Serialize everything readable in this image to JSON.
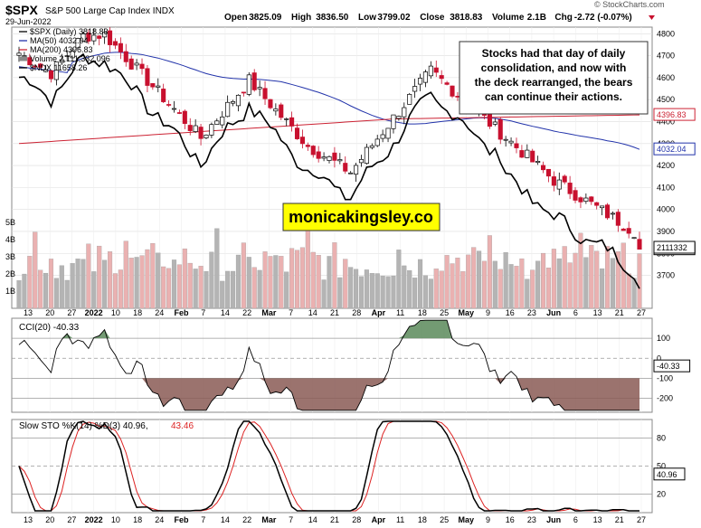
{
  "header": {
    "symbol": "$SPX",
    "name": "S&P 500 Large Cap Index",
    "exchange": "INDX",
    "date": "29-Jun-2022",
    "open_label": "Open",
    "open": "3825.09",
    "high_label": "High",
    "high": "3836.50",
    "low_label": "Low",
    "low": "3799.02",
    "close_label": "Close",
    "close": "3818.83",
    "volume_label": "Volume",
    "volume": "2.1B",
    "chg_label": "Chg",
    "chg": "-2.72 (-0.07%)",
    "source": "© StockCharts.com"
  },
  "legend": {
    "price": "$SPX (Daily) 3818.83",
    "ma50": "MA(50) 4032.04",
    "ma200": "MA(200) 4396.83",
    "volume": "Volume 2,111,332,096",
    "ndx": "$NDX 11658.26"
  },
  "annotation": "Stocks had that day of daily consolidation, and now with the deck rearranged, the bears can continue their actions.",
  "watermark": "monicakingsley.co",
  "colors": {
    "up": "#000000",
    "down": "#c8102e",
    "ma50": "#2233aa",
    "ma200": "#cc2233",
    "ndx": "#000000",
    "vol_up": "#b4b4b4",
    "vol_down": "#eab1b1",
    "watermark_bg": "#ffff00",
    "grid": "#dddddd"
  },
  "chart_data": [
    {
      "type": "candlestick",
      "panel": "price",
      "title": "$SPX (Daily) 3818.83",
      "ylim": [
        3550,
        4830
      ],
      "y_ticks": [
        3700,
        3800,
        3900,
        4000,
        4100,
        4200,
        4300,
        4400,
        4500,
        4600,
        4700,
        4800
      ],
      "x_tick_labels": [
        "13",
        "20",
        "27",
        "2022",
        "10",
        "18",
        "24",
        "Feb",
        "7",
        "14",
        "22",
        "Mar",
        "7",
        "14",
        "21",
        "28",
        "Apr",
        "11",
        "18",
        "25",
        "May",
        "9",
        "16",
        "23",
        "Jun",
        "6",
        "13",
        "21",
        "27"
      ],
      "bars_count": 117,
      "key_closes": [
        {
          "date": "2022-01-03",
          "close": 4796
        },
        {
          "date": "2022-01-27",
          "close": 4326
        },
        {
          "date": "2022-02-09",
          "close": 4587
        },
        {
          "date": "2022-02-24",
          "close": 4289
        },
        {
          "date": "2022-03-08",
          "close": 4170
        },
        {
          "date": "2022-03-29",
          "close": 4631
        },
        {
          "date": "2022-04-29",
          "close": 4132
        },
        {
          "date": "2022-05-20",
          "close": 3901
        },
        {
          "date": "2022-06-02",
          "close": 4176
        },
        {
          "date": "2022-06-16",
          "close": 3667
        },
        {
          "date": "2022-06-24",
          "close": 3911
        },
        {
          "date": "2022-06-29",
          "close": 3818.83
        }
      ],
      "last_close_label": "3818.83",
      "ma50_label": "4032.04",
      "ma200_label": "4396.83",
      "volume_label": "2111332",
      "volume_ticks": [
        "1B",
        "2B",
        "3B",
        "4B",
        "5B"
      ]
    },
    {
      "type": "line",
      "panel": "cci",
      "title": "CCI(20) -40.33",
      "ylim": [
        -270,
        200
      ],
      "y_ticks": [
        -200,
        -100,
        0,
        100
      ],
      "last_value_label": "-40.33",
      "overbought": 100,
      "oversold": -100
    },
    {
      "type": "line",
      "panel": "stochastic",
      "title": "Slow STO %K(14) %D(3) 40.96, 43.46",
      "title_prefix": "Slow STO %K(14) %D(3) 40.96,",
      "title_d": "43.46",
      "ylim": [
        0,
        100
      ],
      "y_ticks": [
        20,
        50,
        80
      ],
      "last_k_label": "40.96",
      "series": [
        {
          "name": "%K"
        },
        {
          "name": "%D"
        }
      ]
    }
  ],
  "x_axis_labels": [
    "13",
    "20",
    "27",
    "2022",
    "10",
    "18",
    "24",
    "Feb",
    "7",
    "14",
    "22",
    "Mar",
    "7",
    "14",
    "21",
    "28",
    "Apr",
    "11",
    "18",
    "25",
    "May",
    "9",
    "16",
    "23",
    "Jun",
    "6",
    "13",
    "21",
    "27"
  ]
}
